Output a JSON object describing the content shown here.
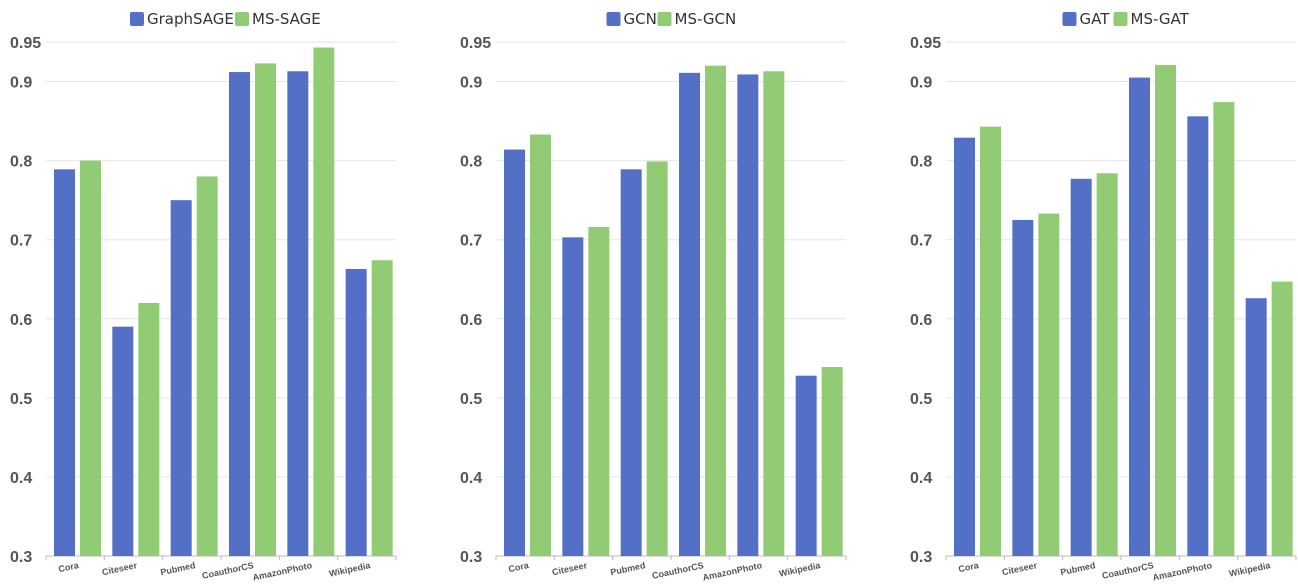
{
  "colors": {
    "base": "#5470c6",
    "ms": "#91cc75",
    "grid": "#e6e6e6",
    "axis": "#bbbbbb",
    "text": "#555555"
  },
  "chart_data": [
    {
      "type": "bar",
      "categories": [
        "Cora",
        "Citeseer",
        "Pubmed",
        "CoauthorCS",
        "AmazonPhoto",
        "Wikipedia"
      ],
      "series": [
        {
          "name": "GraphSAGE",
          "values": [
            0.789,
            0.59,
            0.75,
            0.912,
            0.913,
            0.663
          ]
        },
        {
          "name": "MS-SAGE",
          "values": [
            0.8,
            0.62,
            0.78,
            0.923,
            0.943,
            0.674
          ]
        }
      ],
      "ylim": [
        0.3,
        0.95
      ],
      "yticks": [
        "0.3",
        "0.4",
        "0.5",
        "0.6",
        "0.7",
        "0.8",
        "0.9",
        "0.95"
      ],
      "legend": "top-center",
      "grid": true
    },
    {
      "type": "bar",
      "categories": [
        "Cora",
        "Citeseer",
        "Pubmed",
        "CoauthorCS",
        "AmazonPhoto",
        "Wikipedia"
      ],
      "series": [
        {
          "name": "GCN",
          "values": [
            0.814,
            0.703,
            0.789,
            0.911,
            0.909,
            0.528
          ]
        },
        {
          "name": "MS-GCN",
          "values": [
            0.833,
            0.716,
            0.799,
            0.92,
            0.913,
            0.539
          ]
        }
      ],
      "ylim": [
        0.3,
        0.95
      ],
      "yticks": [
        "0.3",
        "0.4",
        "0.5",
        "0.6",
        "0.7",
        "0.8",
        "0.9",
        "0.95"
      ],
      "legend": "top-center",
      "grid": true
    },
    {
      "type": "bar",
      "categories": [
        "Cora",
        "Citeseer",
        "Pubmed",
        "CoauthorCS",
        "AmazonPhoto",
        "Wikipedia"
      ],
      "series": [
        {
          "name": "GAT",
          "values": [
            0.829,
            0.725,
            0.777,
            0.905,
            0.856,
            0.626
          ]
        },
        {
          "name": "MS-GAT",
          "values": [
            0.843,
            0.733,
            0.784,
            0.921,
            0.874,
            0.647
          ]
        }
      ],
      "ylim": [
        0.3,
        0.95
      ],
      "yticks": [
        "0.3",
        "0.4",
        "0.5",
        "0.6",
        "0.7",
        "0.8",
        "0.9",
        "0.95"
      ],
      "legend": "top-center",
      "grid": true
    }
  ]
}
